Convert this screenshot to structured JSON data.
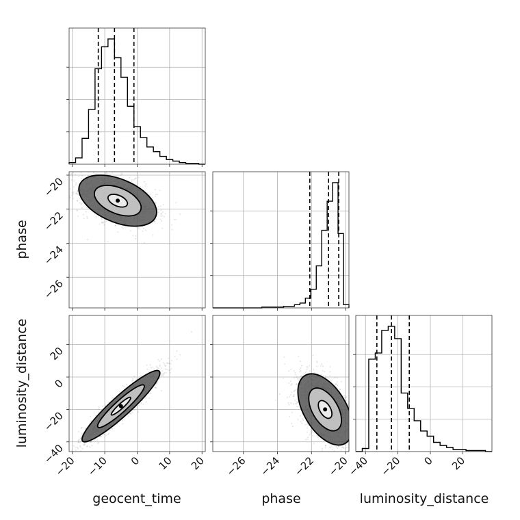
{
  "parameters": [
    "geocent_time",
    "phase",
    "luminosity_distance"
  ],
  "chart_data": {
    "type": "corner",
    "title": "",
    "grid": true,
    "variables": [
      {
        "name": "geocent_time",
        "range": [
          -21,
          21
        ],
        "ticks": [
          -20,
          -10,
          0,
          10,
          20
        ],
        "tick_labels": [
          "−20",
          "−10",
          "0",
          "10",
          "20"
        ],
        "quantiles": [
          -12,
          -7,
          -1
        ],
        "hist_counts": [
          2,
          8,
          33,
          70,
          122,
          150,
          160,
          136,
          111,
          74,
          48,
          34,
          22,
          16,
          10,
          6,
          4,
          2,
          1,
          1,
          0
        ]
      },
      {
        "name": "phase",
        "range": [
          -27.8,
          -19.8
        ],
        "ticks": [
          -26,
          -24,
          -22,
          -20
        ],
        "tick_labels": [
          "−26",
          "−24",
          "−22",
          "−20"
        ],
        "quantiles": [
          -22.1,
          -21.0,
          -20.4
        ],
        "hist_counts": [
          0,
          0,
          0,
          0,
          0,
          0,
          0,
          0,
          0,
          1,
          1,
          1,
          1,
          2,
          2,
          4,
          6,
          12,
          23,
          52,
          96,
          132,
          155,
          92,
          4
        ]
      },
      {
        "name": "luminosity_distance",
        "range": [
          -46,
          38
        ],
        "ticks": [
          -40,
          -20,
          0,
          20
        ],
        "tick_labels": [
          "−40",
          "−20",
          "0",
          "20"
        ],
        "quantiles": [
          -33,
          -24,
          -13
        ],
        "hist_counts": [
          0,
          3,
          90,
          96,
          118,
          122,
          110,
          57,
          42,
          30,
          20,
          15,
          9,
          6,
          4,
          2,
          2,
          1,
          1,
          1,
          0
        ]
      }
    ],
    "pairs": [
      {
        "x": "geocent_time",
        "y": "phase",
        "mean": [
          -6,
          -21.5
        ],
        "std": [
          6,
          0.75
        ],
        "corr": -0.45,
        "contour_levels": [
          0.5,
          1.2,
          2.0
        ]
      },
      {
        "x": "geocent_time",
        "y": "luminosity_distance",
        "mean": [
          -5,
          -18
        ],
        "std": [
          6,
          11
        ],
        "corr": 0.93,
        "contour_levels": [
          0.5,
          1.2,
          2.0
        ]
      },
      {
        "x": "phase",
        "y": "luminosity_distance",
        "mean": [
          -21.2,
          -20
        ],
        "std": [
          0.8,
          11
        ],
        "corr": -0.5,
        "contour_levels": [
          0.5,
          1.2,
          2.0
        ]
      }
    ]
  }
}
